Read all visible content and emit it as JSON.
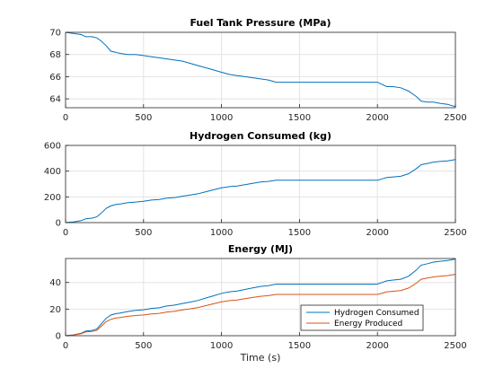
{
  "chart_data": [
    {
      "type": "line",
      "title": "Fuel Tank Pressure (MPa)",
      "xlabel": "",
      "ylabel": "",
      "xlim": [
        0,
        2500
      ],
      "ylim": [
        63.2,
        70
      ],
      "xticks": [
        0,
        500,
        1000,
        1500,
        2000,
        2500
      ],
      "yticks": [
        64,
        66,
        68,
        70
      ],
      "grid": true,
      "series": [
        {
          "color": "#0072BD",
          "x": [
            0,
            50,
            100,
            130,
            170,
            200,
            230,
            260,
            290,
            320,
            350,
            400,
            450,
            500,
            550,
            600,
            650,
            700,
            750,
            800,
            850,
            900,
            950,
            1000,
            1050,
            1100,
            1150,
            1200,
            1250,
            1300,
            1350,
            1400,
            1500,
            1600,
            1700,
            1800,
            1900,
            2000,
            2030,
            2060,
            2100,
            2150,
            2200,
            2250,
            2280,
            2320,
            2360,
            2400,
            2450,
            2500
          ],
          "y": [
            70,
            69.9,
            69.8,
            69.6,
            69.6,
            69.5,
            69.2,
            68.8,
            68.3,
            68.2,
            68.1,
            68.0,
            68.0,
            67.9,
            67.8,
            67.7,
            67.6,
            67.5,
            67.4,
            67.2,
            67.0,
            66.8,
            66.6,
            66.4,
            66.2,
            66.1,
            66.0,
            65.9,
            65.8,
            65.7,
            65.5,
            65.5,
            65.5,
            65.5,
            65.5,
            65.5,
            65.5,
            65.5,
            65.3,
            65.1,
            65.1,
            65.0,
            64.7,
            64.2,
            63.8,
            63.7,
            63.7,
            63.6,
            63.5,
            63.3
          ]
        }
      ]
    },
    {
      "type": "line",
      "title": "Hydrogen Consumed (kg)",
      "xlabel": "",
      "ylabel": "",
      "xlim": [
        0,
        2500
      ],
      "ylim": [
        0,
        600
      ],
      "xticks": [
        0,
        500,
        1000,
        1500,
        2000,
        2500
      ],
      "yticks": [
        0,
        200,
        400,
        600
      ],
      "grid": true,
      "series": [
        {
          "color": "#0072BD",
          "x": [
            0,
            50,
            100,
            130,
            170,
            200,
            230,
            260,
            290,
            320,
            350,
            400,
            450,
            500,
            550,
            600,
            650,
            700,
            750,
            800,
            850,
            900,
            950,
            1000,
            1050,
            1100,
            1150,
            1200,
            1250,
            1300,
            1350,
            1400,
            1500,
            1600,
            1700,
            1800,
            1900,
            2000,
            2030,
            2060,
            2100,
            2150,
            2200,
            2250,
            2280,
            2320,
            2360,
            2400,
            2450,
            2500
          ],
          "y": [
            0,
            5,
            15,
            30,
            35,
            45,
            75,
            110,
            130,
            140,
            145,
            155,
            160,
            165,
            175,
            180,
            190,
            195,
            205,
            215,
            225,
            240,
            255,
            270,
            280,
            285,
            295,
            305,
            315,
            320,
            330,
            330,
            330,
            330,
            330,
            330,
            330,
            330,
            340,
            350,
            355,
            360,
            380,
            420,
            450,
            460,
            470,
            475,
            480,
            490
          ]
        }
      ]
    },
    {
      "type": "line",
      "title": "Energy (MJ)",
      "xlabel": "Time (s)",
      "ylabel": "",
      "xlim": [
        0,
        2500
      ],
      "ylim": [
        0,
        58
      ],
      "xticks": [
        0,
        500,
        1000,
        1500,
        2000,
        2500
      ],
      "yticks": [
        0,
        20,
        40
      ],
      "grid": true,
      "legend": "bottom-right",
      "series": [
        {
          "name": "Hydrogen Consumed",
          "color": "#0072BD",
          "x": [
            0,
            50,
            100,
            130,
            170,
            200,
            230,
            260,
            290,
            320,
            350,
            400,
            450,
            500,
            550,
            600,
            650,
            700,
            750,
            800,
            850,
            900,
            950,
            1000,
            1050,
            1100,
            1150,
            1200,
            1250,
            1300,
            1350,
            1400,
            1500,
            1600,
            1700,
            1800,
            1900,
            2000,
            2030,
            2060,
            2100,
            2150,
            2200,
            2250,
            2280,
            2320,
            2360,
            2400,
            2450,
            2500
          ],
          "y": [
            0,
            0.6,
            1.8,
            3.5,
            4,
            5,
            9,
            13,
            15.5,
            16.5,
            17,
            18.2,
            19,
            19.5,
            20.5,
            21,
            22.3,
            23,
            24.2,
            25.3,
            26.5,
            28.3,
            30,
            31.8,
            33,
            33.5,
            34.7,
            35.9,
            37,
            37.6,
            38.8,
            38.8,
            38.8,
            38.8,
            38.8,
            38.8,
            38.8,
            38.8,
            40,
            41.2,
            41.8,
            42.4,
            44.7,
            49.4,
            53,
            54.1,
            55.3,
            55.9,
            56.5,
            57.6
          ]
        },
        {
          "name": "Energy Produced",
          "color": "#D95319",
          "x": [
            0,
            50,
            100,
            130,
            170,
            200,
            230,
            260,
            290,
            320,
            350,
            400,
            450,
            500,
            550,
            600,
            650,
            700,
            750,
            800,
            850,
            900,
            950,
            1000,
            1050,
            1100,
            1150,
            1200,
            1250,
            1300,
            1350,
            1400,
            1500,
            1600,
            1700,
            1800,
            1900,
            2000,
            2030,
            2060,
            2100,
            2150,
            2200,
            2250,
            2280,
            2320,
            2360,
            2400,
            2450,
            2500
          ],
          "y": [
            0,
            0.5,
            1.5,
            2.8,
            3.2,
            4,
            7.3,
            10.5,
            12.3,
            13.2,
            13.6,
            14.6,
            15.2,
            15.6,
            16.4,
            16.8,
            17.8,
            18.4,
            19.4,
            20.2,
            21.2,
            22.6,
            24,
            25.4,
            26.4,
            26.8,
            27.8,
            28.7,
            29.6,
            30.1,
            31,
            31,
            31,
            31,
            31,
            31,
            31,
            31,
            32,
            33,
            33.4,
            33.9,
            35.8,
            39.5,
            42.4,
            43.3,
            44.2,
            44.7,
            45.2,
            46.1
          ]
        }
      ]
    }
  ]
}
